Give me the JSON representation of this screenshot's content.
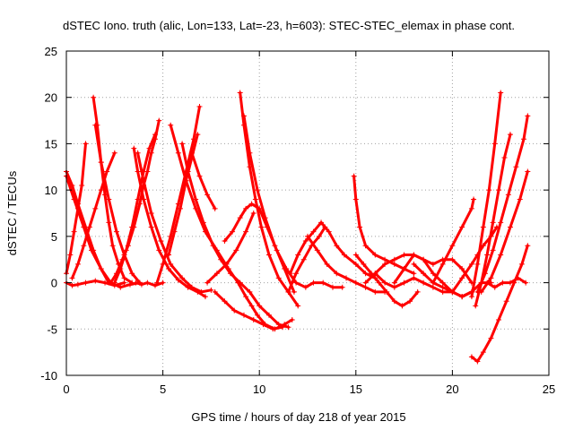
{
  "chart_data": {
    "type": "scatter",
    "title": "dSTEC Iono. truth (alic, Lon=133, Lat=-23, h=603): STEC-STEC_elemax in phase cont.",
    "xlabel": "GPS time / hours of day 218 of year 2015",
    "ylabel": "dSTEC  / TECUs",
    "xlim": [
      0,
      25
    ],
    "ylim": [
      -10,
      25
    ],
    "x_ticks": [
      "0",
      "5",
      "10",
      "15",
      "20",
      "25"
    ],
    "y_ticks": [
      "-10",
      "-5",
      "0",
      "5",
      "10",
      "15",
      "20",
      "25"
    ],
    "x_tick_values": [
      0,
      5,
      10,
      15,
      20,
      25
    ],
    "y_tick_values": [
      -10,
      -5,
      0,
      5,
      10,
      15,
      20,
      25
    ],
    "grid": true,
    "marker": "+",
    "color": "#ff0000",
    "series": [
      {
        "x": [
          0.0,
          0.3,
          0.6,
          1.0,
          1.4,
          1.8,
          2.2
        ],
        "y": [
          12,
          10.5,
          8.5,
          6,
          3.5,
          1.5,
          0
        ]
      },
      {
        "x": [
          0.0,
          0.4,
          0.9,
          1.3,
          1.8,
          2.3,
          2.8,
          3.3,
          3.8
        ],
        "y": [
          11.5,
          9,
          6,
          3.5,
          1.5,
          0,
          -0.5,
          -0.2,
          0
        ]
      },
      {
        "x": [
          0.0,
          0.2,
          0.4,
          0.6,
          0.8,
          1.0
        ],
        "y": [
          1,
          3,
          5.5,
          8,
          10.5,
          15
        ]
      },
      {
        "x": [
          0.0,
          0.3,
          0.6,
          1.0,
          1.5,
          2.0,
          2.5,
          3.0
        ],
        "y": [
          0,
          -0.3,
          -0.2,
          0,
          0.2,
          0,
          -0.3,
          0
        ]
      },
      {
        "x": [
          0.3,
          0.6,
          0.9,
          1.2,
          1.5,
          1.8,
          2.1,
          2.5
        ],
        "y": [
          0.5,
          2,
          4,
          6,
          8,
          10,
          12,
          14
        ]
      },
      {
        "x": [
          1.4,
          1.6,
          1.8,
          2.0,
          2.2,
          2.4,
          2.7,
          3.0,
          3.4
        ],
        "y": [
          20,
          17,
          13,
          9.5,
          6.5,
          4,
          2,
          0.5,
          0
        ]
      },
      {
        "x": [
          1.5,
          1.8,
          2.2,
          2.6,
          3.0,
          3.4,
          3.8
        ],
        "y": [
          17,
          13,
          9,
          5.5,
          3,
          1,
          0
        ]
      },
      {
        "x": [
          2.3,
          2.6,
          2.9,
          3.2,
          3.5,
          3.8,
          4.0,
          4.2,
          4.4,
          4.6,
          4.8
        ],
        "y": [
          0,
          1,
          2.5,
          4,
          6,
          8.5,
          10.5,
          12,
          14,
          15.5,
          17.5
        ]
      },
      {
        "x": [
          2.5,
          2.8,
          3.1,
          3.4,
          3.7,
          4.0,
          4.3,
          4.6
        ],
        "y": [
          0,
          1.5,
          3.5,
          6,
          9,
          12,
          14.5,
          16
        ]
      },
      {
        "x": [
          3.5,
          3.7,
          4.0,
          4.4,
          4.8,
          5.3,
          5.8,
          6.3,
          6.8,
          7.2
        ],
        "y": [
          14.5,
          12,
          9,
          6,
          3.5,
          1.5,
          0.3,
          -0.5,
          -1,
          -1.5
        ]
      },
      {
        "x": [
          3.7,
          4.0,
          4.4,
          4.9,
          5.4,
          6.0,
          6.5,
          7.0,
          7.5
        ],
        "y": [
          14,
          11,
          7.5,
          4.5,
          2,
          0.5,
          -0.5,
          -1,
          -0.8
        ]
      },
      {
        "x": [
          3.6,
          3.9,
          4.2,
          4.6,
          5.0
        ],
        "y": [
          0,
          -0.2,
          0,
          -0.3,
          0
        ]
      },
      {
        "x": [
          4.7,
          5.0,
          5.4,
          5.8,
          6.2,
          6.6,
          6.9
        ],
        "y": [
          0,
          2,
          5,
          8.5,
          12,
          15.5,
          19
        ]
      },
      {
        "x": [
          5.3,
          5.6,
          5.9,
          6.2,
          6.5,
          6.8
        ],
        "y": [
          3,
          5.5,
          8,
          11,
          13.5,
          16
        ]
      },
      {
        "x": [
          5.4,
          5.8,
          6.2,
          6.7,
          7.2,
          7.8,
          8.4,
          8.9,
          9.3,
          9.6,
          9.9,
          10.3,
          10.8,
          11.3,
          11.7
        ],
        "y": [
          17,
          14,
          11,
          8,
          5.5,
          3.5,
          1.5,
          0,
          -1.5,
          -2.5,
          -3.5,
          -4.5,
          -5,
          -4.5,
          -4
        ]
      },
      {
        "x": [
          6.0,
          6.3,
          6.7,
          7.1,
          7.6,
          8.0,
          8.5,
          9.0,
          9.5,
          10.0,
          10.5,
          11.0,
          11.5
        ],
        "y": [
          15,
          12,
          9,
          6.5,
          4,
          2.5,
          1,
          0,
          -1,
          -2.5,
          -3.5,
          -4.5,
          -4.8
        ]
      },
      {
        "x": [
          6.5,
          6.9,
          7.3,
          7.7
        ],
        "y": [
          14,
          11.5,
          9.5,
          8
        ]
      },
      {
        "x": [
          8.2,
          8.6,
          9.0,
          9.3,
          9.6,
          10.0,
          10.4,
          10.9,
          11.4,
          11.9,
          12.4,
          12.8,
          13.3,
          13.8,
          14.3
        ],
        "y": [
          4.5,
          5.5,
          7,
          8,
          8.5,
          8,
          6,
          3.5,
          1.5,
          0,
          -0.5,
          0,
          0,
          -0.5,
          -0.5
        ]
      },
      {
        "x": [
          7.3,
          7.8,
          8.3,
          8.8,
          9.3,
          9.7
        ],
        "y": [
          0,
          1,
          2,
          3.5,
          5.5,
          7.5
        ]
      },
      {
        "x": [
          9.0,
          9.2,
          9.5,
          9.8,
          10.1,
          10.5,
          11.0,
          11.5,
          12.0
        ],
        "y": [
          20.5,
          17,
          12.5,
          9,
          6,
          3,
          0.5,
          -1,
          -2.5
        ]
      },
      {
        "x": [
          9.2,
          9.5,
          9.9,
          10.3,
          10.8,
          11.3,
          11.8
        ],
        "y": [
          18,
          14,
          10,
          7,
          4,
          1.5,
          -1
        ]
      },
      {
        "x": [
          7.7,
          8.2,
          8.7,
          9.2,
          9.7,
          10.2,
          10.7,
          11.2
        ],
        "y": [
          -1,
          -2,
          -3,
          -3.5,
          -4,
          -4.5,
          -5,
          -4.8
        ]
      },
      {
        "x": [
          11.6,
          12.0,
          12.4,
          12.8,
          13.2,
          13.6,
          14.0,
          14.4,
          15.0,
          15.5,
          16.0
        ],
        "y": [
          1,
          3,
          4.5,
          5.5,
          6.5,
          5.5,
          4,
          3,
          2,
          1,
          0.5
        ]
      },
      {
        "x": [
          11.5,
          11.9,
          12.3,
          12.7,
          13.1,
          13.4
        ],
        "y": [
          -1,
          1,
          2.5,
          4,
          5,
          6
        ]
      },
      {
        "x": [
          12.5,
          13.0,
          13.5,
          14.0,
          14.5,
          15.0,
          15.5,
          16.0,
          16.5
        ],
        "y": [
          5,
          3.5,
          2,
          1,
          0.5,
          0,
          -0.5,
          -1,
          -1
        ]
      },
      {
        "x": [
          14.9,
          15.0,
          15.2,
          15.5,
          16.0,
          16.5,
          17.0,
          17.5,
          18.0
        ],
        "y": [
          11.5,
          9,
          6,
          4,
          3,
          2.5,
          2,
          1.5,
          1
        ]
      },
      {
        "x": [
          15.0,
          15.4,
          15.8,
          16.2,
          16.6,
          17.0,
          17.4,
          17.8,
          18.2
        ],
        "y": [
          3,
          2,
          1,
          0,
          -1,
          -2,
          -2.5,
          -2,
          -1
        ]
      },
      {
        "x": [
          15.5,
          16.0,
          16.5,
          17.0,
          17.5,
          18.0,
          18.5,
          19.0,
          19.5,
          20.0,
          20.5,
          21.0
        ],
        "y": [
          0,
          1,
          2,
          2.5,
          3,
          3,
          2.5,
          2,
          2.5,
          2.5,
          1.5,
          0
        ]
      },
      {
        "x": [
          16.0,
          16.5,
          17.0,
          17.5,
          18.0,
          18.5,
          19.0,
          19.5,
          20.0,
          20.5,
          21.0
        ],
        "y": [
          1,
          0,
          -0.5,
          0,
          0.5,
          0,
          -0.5,
          -1,
          -1,
          -1.5,
          -1
        ]
      },
      {
        "x": [
          17.0,
          17.5,
          18.0,
          18.5,
          19.0,
          19.5,
          20.0,
          20.5,
          21.0
        ],
        "y": [
          0,
          1.5,
          3,
          2.5,
          1,
          0,
          -1,
          -1.5,
          -1
        ]
      },
      {
        "x": [
          18.0,
          18.5,
          19.0,
          19.5,
          20.0,
          20.5,
          21.0,
          21.5,
          22.0
        ],
        "y": [
          2,
          1,
          0,
          -0.5,
          -1,
          -1.5,
          -1,
          0,
          0
        ]
      },
      {
        "x": [
          19.0,
          19.5,
          20.0,
          20.5,
          21.0,
          21.1
        ],
        "y": [
          0,
          2,
          4,
          6,
          8,
          9
        ]
      },
      {
        "x": [
          20.0,
          20.5,
          21.0,
          21.3,
          21.6,
          22.0,
          22.3
        ],
        "y": [
          -1,
          0.5,
          2,
          3,
          4,
          5,
          6
        ]
      },
      {
        "x": [
          21.0,
          21.3,
          21.6,
          21.9,
          22.2,
          22.5
        ],
        "y": [
          -1.5,
          2,
          6,
          10,
          15,
          20.5
        ]
      },
      {
        "x": [
          21.2,
          21.5,
          21.8,
          22.1,
          22.4,
          22.7,
          23.0
        ],
        "y": [
          -2.5,
          0,
          3,
          6.5,
          10,
          13.5,
          16
        ]
      },
      {
        "x": [
          21.0,
          21.3,
          21.6,
          22.0,
          22.4,
          22.8,
          23.2,
          23.6,
          23.9
        ],
        "y": [
          -8,
          -8.5,
          -7.5,
          -6,
          -4,
          -2,
          0,
          2,
          4
        ]
      },
      {
        "x": [
          21.5,
          22.0,
          22.5,
          23.0,
          23.5,
          23.9
        ],
        "y": [
          -1,
          0.5,
          3,
          6,
          9,
          12
        ]
      },
      {
        "x": [
          21.3,
          21.7,
          22.1,
          22.5,
          22.9,
          23.3,
          23.7,
          23.9
        ],
        "y": [
          -1,
          1,
          3.5,
          6.5,
          9.5,
          12.5,
          15.5,
          18
        ]
      },
      {
        "x": [
          21.8,
          22.2,
          22.6,
          23.0,
          23.4,
          23.8
        ],
        "y": [
          0,
          -0.5,
          0,
          0,
          0.5,
          0
        ]
      }
    ]
  }
}
